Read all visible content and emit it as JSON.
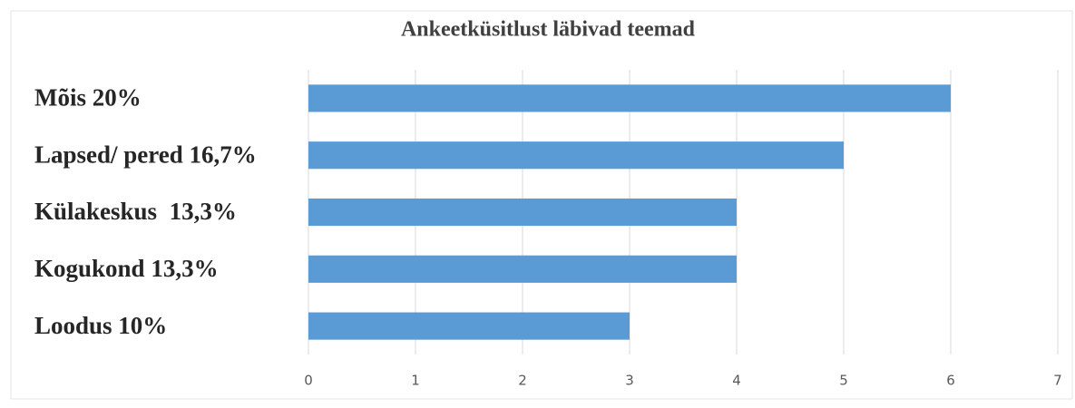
{
  "chart_data": {
    "type": "bar",
    "orientation": "horizontal",
    "title": "Ankeetküsitlust läbivad teemad",
    "categories": [
      "Mõis 20%",
      "Lapsed/ pered 16,7%",
      "Külakeskus  13,3%",
      "Kogukond 13,3%",
      "Loodus 10%"
    ],
    "values": [
      6,
      5,
      4,
      4,
      3
    ],
    "color": "#5b9bd5",
    "xlim": [
      0,
      7
    ],
    "xticks": [
      0,
      1,
      2,
      3,
      4,
      5,
      6,
      7
    ],
    "grid": true
  }
}
